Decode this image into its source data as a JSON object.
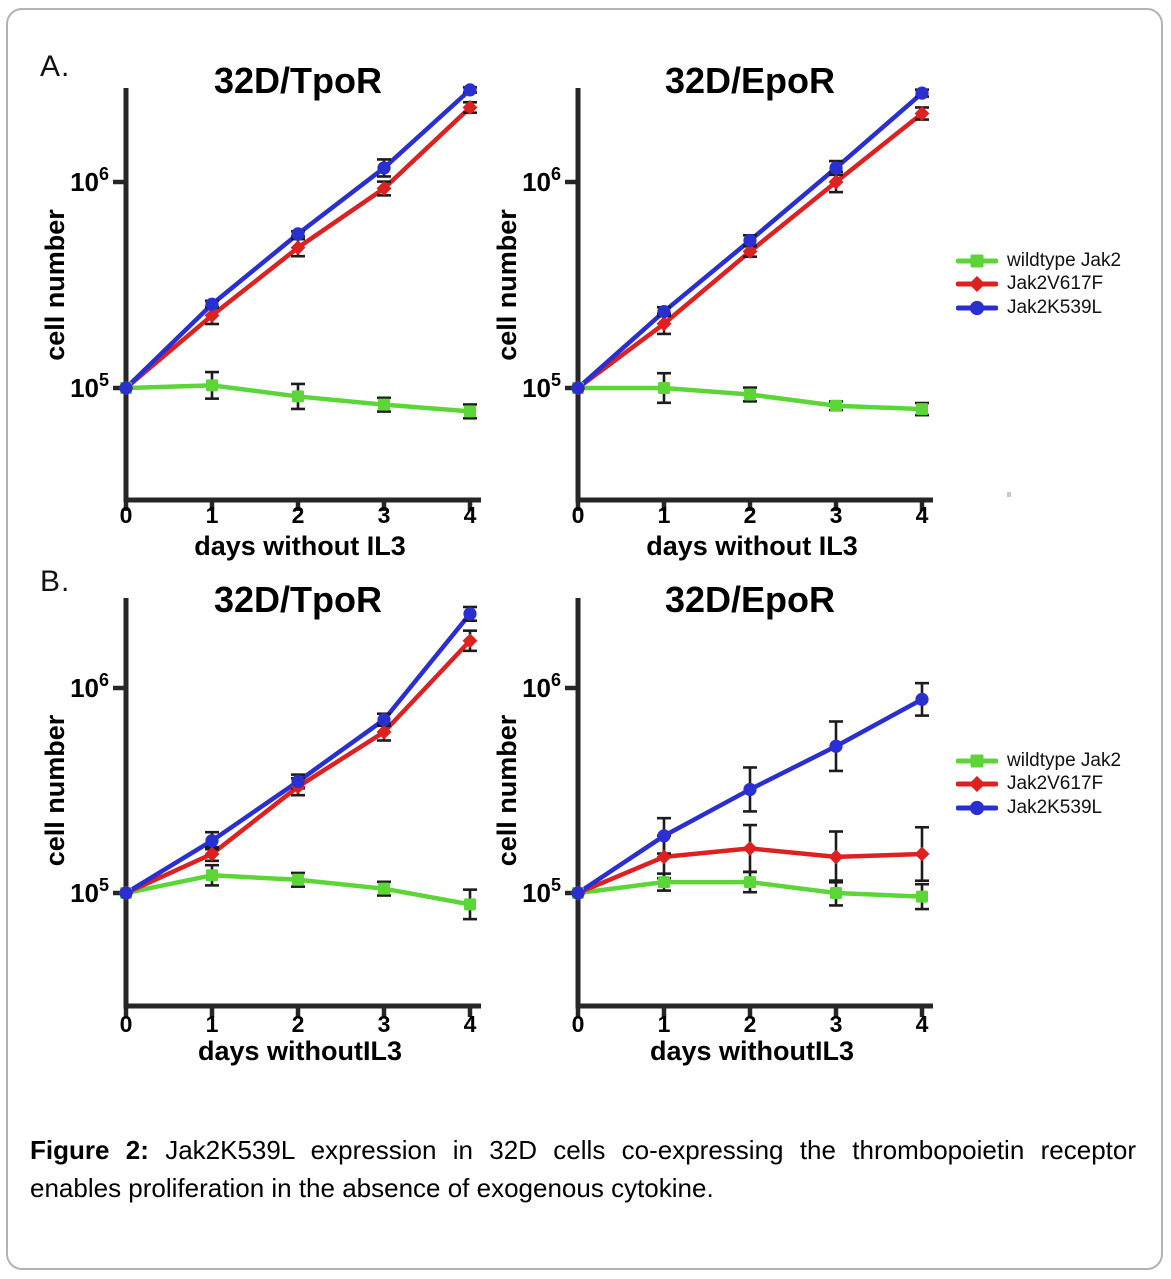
{
  "panels": {
    "a": {
      "label": "A."
    },
    "b": {
      "label": "B."
    }
  },
  "legend": {
    "items": [
      {
        "label": "wildtype Jak2",
        "color": "#5cd636",
        "marker": "square"
      },
      {
        "label": "Jak2V617F",
        "color": "#dd2020",
        "marker": "diamond"
      },
      {
        "label": "Jak2K539L",
        "color": "#2a2fd2",
        "marker": "circle"
      }
    ]
  },
  "caption": {
    "prefix": "Figure 2:",
    "body": " Jak2K539L expression in 32D cells co-expressing the thrombopoietin receptor enables proliferation in the absence of exogenous cytokine."
  },
  "chart_data": [
    {
      "type": "line",
      "panel": "A",
      "title": "32D/TpoR",
      "xlabel": "days without IL3",
      "ylabel": "cell number",
      "yscale": "log",
      "grid": false,
      "legend_position": "right-outside",
      "x": [
        0,
        1,
        2,
        3,
        4
      ],
      "xtick_labels": [
        "0",
        "1",
        "2",
        "3",
        "4"
      ],
      "yticks": [
        {
          "text": "10",
          "sup": "5",
          "value": 100000
        },
        {
          "text": "10",
          "sup": "6",
          "value": 1000000
        }
      ],
      "ylim": [
        29000,
        2900000
      ],
      "series": [
        {
          "name": "wildtype Jak2",
          "color": "#5cd636",
          "marker": "square",
          "values": [
            100000,
            103000,
            91000,
            83000,
            77000
          ],
          "err_factors": [
            1,
            1.16,
            1.15,
            1.08,
            1.08
          ]
        },
        {
          "name": "Jak2V617F",
          "color": "#dd2020",
          "marker": "diamond",
          "values": [
            100000,
            225000,
            480000,
            930000,
            2300000
          ],
          "err_factors": [
            1,
            1.1,
            1.1,
            1.08,
            1.06
          ]
        },
        {
          "name": "Jak2K539L",
          "color": "#2a2fd2",
          "marker": "circle",
          "values": [
            100000,
            255000,
            560000,
            1170000,
            2800000
          ],
          "err_factors": [
            1,
            1.04,
            1.03,
            1.1,
            1.03
          ]
        }
      ]
    },
    {
      "type": "line",
      "panel": "A",
      "title": "32D/EpoR",
      "xlabel": "days without IL3",
      "ylabel": "cell number",
      "yscale": "log",
      "grid": false,
      "legend_position": "right-outside",
      "x": [
        0,
        1,
        2,
        3,
        4
      ],
      "xtick_labels": [
        "0",
        "1",
        "2",
        "3",
        "4"
      ],
      "yticks": [
        {
          "text": "10",
          "sup": "5",
          "value": 100000
        },
        {
          "text": "10",
          "sup": "6",
          "value": 1000000
        }
      ],
      "ylim": [
        29000,
        2900000
      ],
      "series": [
        {
          "name": "wildtype Jak2",
          "color": "#5cd636",
          "marker": "square",
          "values": [
            100000,
            100000,
            93000,
            82000,
            79000
          ],
          "err_factors": [
            1,
            1.18,
            1.08,
            1.05,
            1.07
          ]
        },
        {
          "name": "Jak2V617F",
          "color": "#dd2020",
          "marker": "diamond",
          "values": [
            100000,
            205000,
            460000,
            1000000,
            2150000
          ],
          "err_factors": [
            1,
            1.12,
            1.06,
            1.12,
            1.07
          ]
        },
        {
          "name": "Jak2K539L",
          "color": "#2a2fd2",
          "marker": "circle",
          "values": [
            100000,
            235000,
            520000,
            1170000,
            2700000
          ],
          "err_factors": [
            1,
            1.05,
            1.06,
            1.08,
            1.04
          ]
        }
      ]
    },
    {
      "type": "line",
      "panel": "B",
      "title": "32D/TpoR",
      "xlabel": "days withoutIL3",
      "ylabel": "cell number",
      "yscale": "log",
      "grid": false,
      "legend_position": "right-outside",
      "x": [
        0,
        1,
        2,
        3,
        4
      ],
      "xtick_labels": [
        "0",
        "1",
        "2",
        "3",
        "4"
      ],
      "yticks": [
        {
          "text": "10",
          "sup": "5",
          "value": 100000
        },
        {
          "text": "10",
          "sup": "6",
          "value": 1000000
        }
      ],
      "ylim": [
        28000,
        2700000
      ],
      "series": [
        {
          "name": "wildtype Jak2",
          "color": "#5cd636",
          "marker": "square",
          "values": [
            100000,
            122000,
            116000,
            105000,
            88000
          ],
          "err_factors": [
            1,
            1.12,
            1.08,
            1.08,
            1.18
          ]
        },
        {
          "name": "Jak2V617F",
          "color": "#dd2020",
          "marker": "diamond",
          "values": [
            100000,
            155000,
            330000,
            610000,
            1700000
          ],
          "err_factors": [
            1,
            1.08,
            1.1,
            1.1,
            1.12
          ]
        },
        {
          "name": "Jak2K539L",
          "color": "#2a2fd2",
          "marker": "circle",
          "values": [
            100000,
            180000,
            350000,
            700000,
            2300000
          ],
          "err_factors": [
            1,
            1.1,
            1.08,
            1.07,
            1.08
          ]
        }
      ]
    },
    {
      "type": "line",
      "panel": "B",
      "title": "32D/EpoR",
      "xlabel": "days withoutIL3",
      "ylabel": "cell number",
      "yscale": "log",
      "grid": false,
      "legend_position": "right-outside",
      "x": [
        0,
        1,
        2,
        3,
        4
      ],
      "xtick_labels": [
        "0",
        "1",
        "2",
        "3",
        "4"
      ],
      "yticks": [
        {
          "text": "10",
          "sup": "5",
          "value": 100000
        },
        {
          "text": "10",
          "sup": "6",
          "value": 1000000
        }
      ],
      "ylim": [
        28000,
        2700000
      ],
      "series": [
        {
          "name": "wildtype Jak2",
          "color": "#5cd636",
          "marker": "square",
          "values": [
            100000,
            113000,
            113000,
            100000,
            96000
          ],
          "err_factors": [
            1,
            1.1,
            1.12,
            1.15,
            1.15
          ]
        },
        {
          "name": "Jak2V617F",
          "color": "#dd2020",
          "marker": "diamond",
          "values": [
            100000,
            150000,
            165000,
            150000,
            155000
          ],
          "err_factors": [
            1,
            1.27,
            1.3,
            1.33,
            1.35
          ]
        },
        {
          "name": "Jak2K539L",
          "color": "#2a2fd2",
          "marker": "circle",
          "values": [
            100000,
            190000,
            320000,
            520000,
            880000
          ],
          "err_factors": [
            1,
            1.22,
            1.28,
            1.32,
            1.2
          ]
        }
      ]
    }
  ]
}
